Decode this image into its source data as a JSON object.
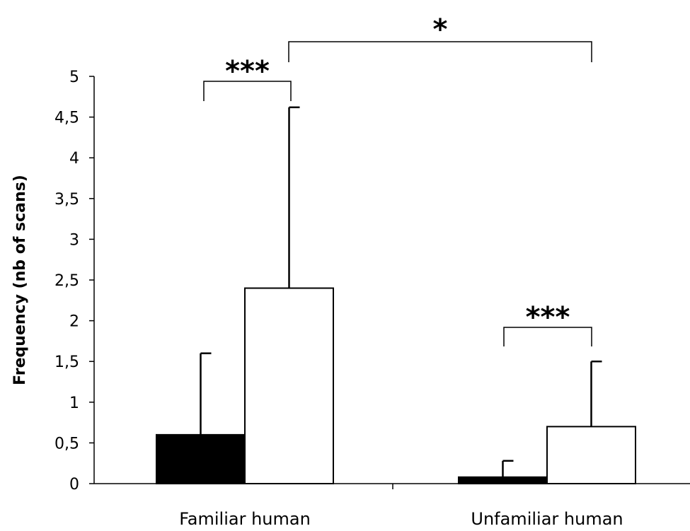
{
  "chart_data": {
    "type": "bar",
    "categories": [
      "Familiar human",
      "Unfamiliar human"
    ],
    "series": [
      {
        "color": "#000000",
        "values": [
          0.6,
          0.08
        ],
        "error": [
          1.0,
          0.2
        ]
      },
      {
        "color": "#ffffff",
        "values": [
          2.4,
          0.7
        ],
        "error": [
          2.22,
          0.8
        ]
      }
    ],
    "title": "",
    "xlabel": "",
    "ylabel": "Frequency (nb of scans)",
    "ylim": [
      0,
      5
    ],
    "yticks": [
      "0",
      "0,5",
      "1",
      "1,5",
      "2",
      "2,5",
      "3",
      "3,5",
      "4",
      "4,5",
      "5"
    ],
    "grid": false,
    "legend": "none",
    "significance": [
      {
        "label": "***",
        "between": "Familiar human: both bars"
      },
      {
        "label": "***",
        "between": "Unfamiliar human: both bars"
      },
      {
        "label": "*",
        "between": "Familiar human (white) vs Unfamiliar human (white)"
      }
    ]
  }
}
